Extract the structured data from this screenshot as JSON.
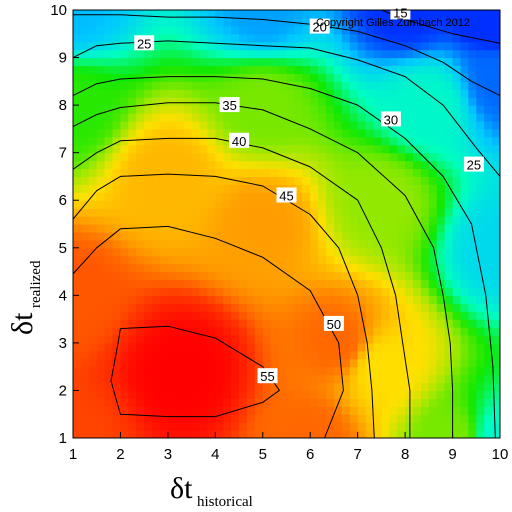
{
  "chart_data": {
    "type": "heatmap",
    "subtype": "filled-contour",
    "title": "",
    "copyright": "Copyright Gilles Zumbach 2012",
    "xlabel": {
      "main": "δt",
      "sub": "historical"
    },
    "ylabel": {
      "main": "δt",
      "sub": "realized"
    },
    "xlim": [
      1,
      10
    ],
    "ylim": [
      1,
      10
    ],
    "xticks": [
      "1",
      "2",
      "3",
      "4",
      "5",
      "6",
      "7",
      "8",
      "9",
      "10"
    ],
    "yticks": [
      "1",
      "2",
      "3",
      "4",
      "5",
      "6",
      "7",
      "8",
      "9",
      "10"
    ],
    "colormap": [
      "#0030ff",
      "#00c8ff",
      "#00ffc0",
      "#10e800",
      "#a0e800",
      "#ffe000",
      "#ff9a00",
      "#ff3800",
      "#ff0000"
    ],
    "value_range": [
      15,
      58
    ],
    "contour_levels": [
      15,
      20,
      25,
      30,
      35,
      40,
      45,
      50,
      55
    ],
    "contour_label_texts": [
      "15",
      "20",
      "25",
      "30",
      "35",
      "40",
      "45",
      "50",
      "55",
      "25",
      "35"
    ],
    "contours": [
      {
        "level": 55,
        "points": [
          [
            2,
            3.3
          ],
          [
            3,
            3.35
          ],
          [
            4,
            3.1
          ],
          [
            5,
            2.5
          ],
          [
            5.35,
            2.0
          ],
          [
            5,
            1.75
          ],
          [
            4,
            1.45
          ],
          [
            3,
            1.45
          ],
          [
            2,
            1.5
          ],
          [
            1.8,
            2.2
          ],
          [
            1.95,
            3.0
          ],
          [
            2,
            3.3
          ]
        ],
        "label_at": [
          5.1,
          2.3
        ]
      },
      {
        "level": 50,
        "points": [
          [
            1,
            4.45
          ],
          [
            1.5,
            5.0
          ],
          [
            2,
            5.4
          ],
          [
            3,
            5.45
          ],
          [
            4,
            5.2
          ],
          [
            5,
            4.8
          ],
          [
            6,
            4.1
          ],
          [
            6.6,
            3.0
          ],
          [
            6.7,
            2.0
          ],
          [
            6.3,
            1.0
          ]
        ],
        "label_at": [
          6.5,
          3.4
        ]
      },
      {
        "level": 45,
        "points": [
          [
            1,
            5.6
          ],
          [
            1.5,
            6.2
          ],
          [
            2,
            6.5
          ],
          [
            3,
            6.55
          ],
          [
            4,
            6.5
          ],
          [
            5,
            6.3
          ],
          [
            6,
            5.7
          ],
          [
            6.6,
            5.0
          ],
          [
            7,
            4.0
          ],
          [
            7.2,
            3.0
          ],
          [
            7.3,
            2.0
          ],
          [
            7.35,
            1.0
          ]
        ],
        "label_at": [
          5.5,
          6.1
        ]
      },
      {
        "level": 40,
        "points": [
          [
            1,
            6.65
          ],
          [
            1.5,
            7.0
          ],
          [
            2,
            7.25
          ],
          [
            3,
            7.3
          ],
          [
            4,
            7.3
          ],
          [
            5,
            7.1
          ],
          [
            6,
            6.7
          ],
          [
            7,
            6.0
          ],
          [
            7.5,
            5.0
          ],
          [
            7.8,
            4.0
          ],
          [
            7.95,
            3.0
          ],
          [
            8.1,
            2.0
          ],
          [
            8.1,
            1.0
          ]
        ],
        "label_at": [
          4.5,
          7.25
        ]
      },
      {
        "level": 35,
        "points": [
          [
            1,
            7.55
          ],
          [
            1.5,
            7.8
          ],
          [
            2,
            7.95
          ],
          [
            3,
            8.05
          ],
          [
            4,
            8.05
          ],
          [
            5,
            7.9
          ],
          [
            6,
            7.5
          ],
          [
            7,
            7.0
          ],
          [
            8,
            6.1
          ],
          [
            8.6,
            5.0
          ],
          [
            8.8,
            4.0
          ],
          [
            8.95,
            3.0
          ],
          [
            9.0,
            2.0
          ],
          [
            9.0,
            1.0
          ]
        ],
        "label_at": [
          4.3,
          8.0
        ]
      },
      {
        "level": 30,
        "points": [
          [
            1,
            8.2
          ],
          [
            1.5,
            8.45
          ],
          [
            2,
            8.55
          ],
          [
            3,
            8.6
          ],
          [
            4,
            8.6
          ],
          [
            5,
            8.55
          ],
          [
            6,
            8.35
          ],
          [
            7,
            8.0
          ],
          [
            8,
            7.3
          ],
          [
            8.8,
            6.5
          ],
          [
            9.4,
            5.5
          ],
          [
            9.7,
            4.0
          ],
          [
            9.85,
            2.5
          ],
          [
            9.9,
            1.0
          ]
        ],
        "label_at": [
          7.7,
          7.7
        ]
      },
      {
        "level": 25,
        "points": [
          [
            1,
            9.0
          ],
          [
            1.5,
            9.25
          ],
          [
            2,
            9.3
          ],
          [
            3,
            9.35
          ],
          [
            4,
            9.3
          ],
          [
            5,
            9.25
          ],
          [
            6,
            9.2
          ],
          [
            7,
            8.95
          ],
          [
            8,
            8.6
          ],
          [
            8.8,
            8.0
          ],
          [
            9.5,
            7.1
          ],
          [
            10,
            6.5
          ]
        ],
        "label_at": [
          2.5,
          9.3
        ]
      },
      {
        "level": 25,
        "points": [
          [
            9.3,
            7.3
          ],
          [
            9.6,
            6.8
          ]
        ],
        "label_at": [
          9.45,
          6.75
        ],
        "label_only": true
      },
      {
        "level": 20,
        "points": [
          [
            1,
            9.9
          ],
          [
            2,
            9.9
          ],
          [
            3,
            9.85
          ],
          [
            4,
            9.85
          ],
          [
            5,
            9.8
          ],
          [
            6,
            9.7
          ],
          [
            7,
            9.55
          ],
          [
            8,
            9.25
          ],
          [
            8.8,
            8.9
          ],
          [
            9.4,
            8.5
          ],
          [
            10,
            8.2
          ]
        ],
        "label_at": [
          6.2,
          9.65
        ]
      },
      {
        "level": 15,
        "points": [
          [
            7.5,
            10
          ],
          [
            8,
            9.8
          ],
          [
            9,
            9.5
          ],
          [
            10,
            9.3
          ]
        ],
        "label_at": [
          7.9,
          9.95
        ]
      }
    ],
    "field_control_points": [
      {
        "x": 3.3,
        "y": 2.4,
        "value": 58
      },
      {
        "x": 1.0,
        "y": 1.0,
        "value": 52
      },
      {
        "x": 6.0,
        "y": 1.0,
        "value": 50
      },
      {
        "x": 1.0,
        "y": 4.0,
        "value": 51
      },
      {
        "x": 6.6,
        "y": 3.0,
        "value": 50
      },
      {
        "x": 7.5,
        "y": 2.5,
        "value": 42
      },
      {
        "x": 9.0,
        "y": 1.0,
        "value": 35
      },
      {
        "x": 10.0,
        "y": 1.0,
        "value": 25
      },
      {
        "x": 10.0,
        "y": 5.0,
        "value": 22
      },
      {
        "x": 10.0,
        "y": 8.5,
        "value": 17
      },
      {
        "x": 10.0,
        "y": 10.0,
        "value": 13
      },
      {
        "x": 8.0,
        "y": 10.0,
        "value": 15
      },
      {
        "x": 5.0,
        "y": 10.0,
        "value": 19
      },
      {
        "x": 1.0,
        "y": 10.0,
        "value": 20
      },
      {
        "x": 1.0,
        "y": 8.0,
        "value": 32
      },
      {
        "x": 3.0,
        "y": 6.5,
        "value": 45
      },
      {
        "x": 5.0,
        "y": 5.5,
        "value": 47
      },
      {
        "x": 7.5,
        "y": 6.0,
        "value": 36
      },
      {
        "x": 5.0,
        "y": 8.0,
        "value": 35
      },
      {
        "x": 8.5,
        "y": 8.0,
        "value": 25
      }
    ],
    "grid": false,
    "legend": "none"
  }
}
